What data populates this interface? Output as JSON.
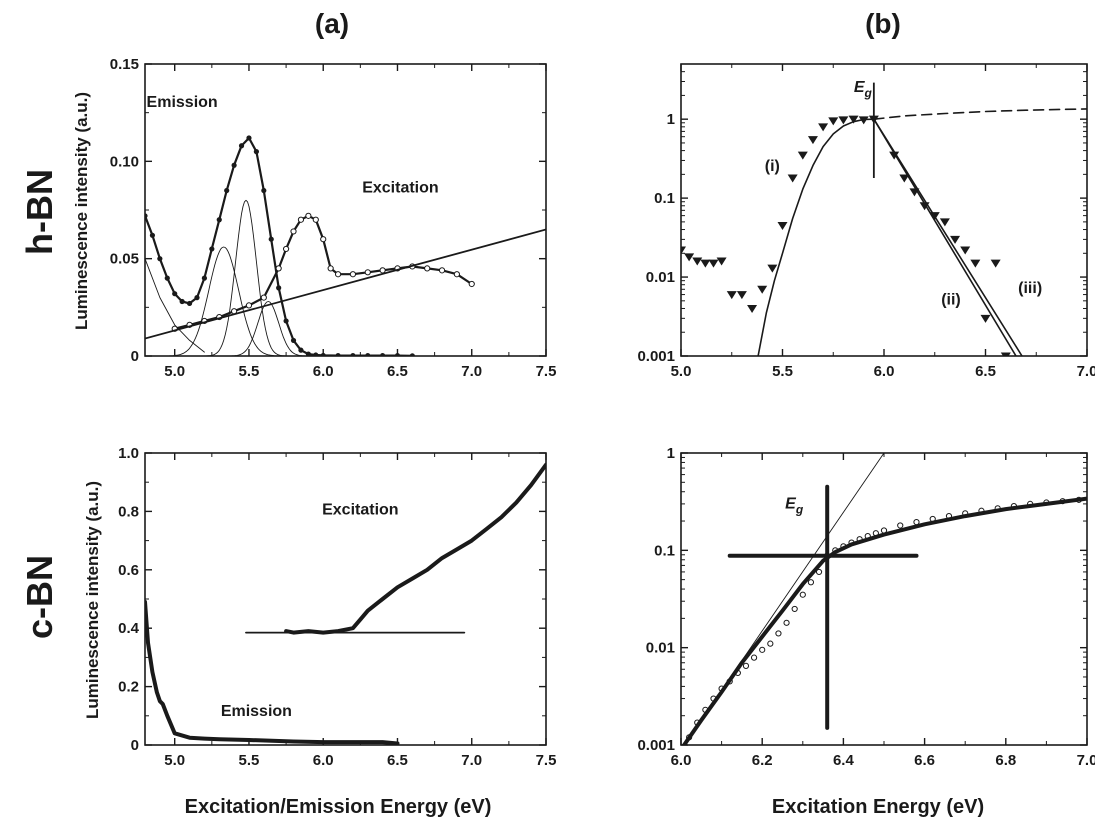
{
  "figure": {
    "column_labels": [
      "(a)",
      "(b)"
    ],
    "row_labels": [
      "h-BN",
      "c-BN"
    ],
    "x_label_left": "Excitation/Emission Energy (eV)",
    "x_label_right": "Excitation Energy (eV)",
    "y_label_left": "Luminescence intensity (a.u.)"
  },
  "chart_data": [
    {
      "id": "hbn_a",
      "type": "line",
      "row": "h-BN",
      "column": "(a)",
      "xlim": [
        4.8,
        7.5
      ],
      "ylim": [
        0,
        0.15
      ],
      "xticks": [
        5.0,
        5.5,
        6.0,
        6.5,
        7.0,
        7.5
      ],
      "yticks": [
        0,
        0.05,
        0.1,
        0.15
      ],
      "xtick_labels": [
        "5.0",
        "5.5",
        "6.0",
        "6.5",
        "7.0",
        "7.5"
      ],
      "ytick_labels": [
        "0",
        "0.05",
        "0.10",
        "0.15"
      ],
      "ylabel": "Luminescence intensity (a.u.)",
      "annotations": [
        {
          "text": "Emission",
          "x": 5.05,
          "y": 0.128
        },
        {
          "text": "Excitation",
          "x": 6.52,
          "y": 0.084
        }
      ],
      "series": [
        {
          "name": "Emission",
          "style": "filled-dots+line",
          "x": [
            4.8,
            4.85,
            4.9,
            4.95,
            5.0,
            5.05,
            5.1,
            5.15,
            5.2,
            5.25,
            5.3,
            5.35,
            5.4,
            5.45,
            5.5,
            5.55,
            5.6,
            5.65,
            5.7,
            5.75,
            5.8,
            5.85,
            5.9,
            5.95,
            6.0,
            6.1,
            6.2,
            6.3,
            6.4,
            6.5,
            6.6
          ],
          "y": [
            0.072,
            0.062,
            0.05,
            0.04,
            0.032,
            0.028,
            0.027,
            0.03,
            0.04,
            0.055,
            0.07,
            0.085,
            0.098,
            0.108,
            0.112,
            0.105,
            0.085,
            0.06,
            0.035,
            0.018,
            0.008,
            0.003,
            0.001,
            0.0005,
            0.0003,
            0.0002,
            0.0002,
            0.0002,
            0.0002,
            0.0002,
            0.0001
          ]
        },
        {
          "name": "Excitation",
          "style": "open-circles+line",
          "x": [
            5.0,
            5.1,
            5.2,
            5.3,
            5.4,
            5.5,
            5.6,
            5.7,
            5.75,
            5.8,
            5.85,
            5.9,
            5.95,
            6.0,
            6.05,
            6.1,
            6.2,
            6.3,
            6.4,
            6.5,
            6.6,
            6.7,
            6.8,
            6.9,
            7.0
          ],
          "y": [
            0.014,
            0.016,
            0.018,
            0.02,
            0.023,
            0.026,
            0.03,
            0.045,
            0.055,
            0.064,
            0.07,
            0.072,
            0.07,
            0.06,
            0.045,
            0.042,
            0.042,
            0.043,
            0.044,
            0.045,
            0.046,
            0.045,
            0.044,
            0.042,
            0.037
          ]
        },
        {
          "name": "Gaussian 1",
          "style": "thin-line",
          "center": 5.33,
          "amplitude": 0.056,
          "sigma": 0.1
        },
        {
          "name": "Gaussian 2",
          "style": "thin-line",
          "center": 5.48,
          "amplitude": 0.08,
          "sigma": 0.07
        },
        {
          "name": "Gaussian 3",
          "style": "thin-line",
          "center": 5.63,
          "amplitude": 0.028,
          "sigma": 0.07
        },
        {
          "name": "Emission tail",
          "style": "thin-line",
          "x": [
            4.8,
            4.9,
            5.0,
            5.1,
            5.2
          ],
          "y": [
            0.05,
            0.03,
            0.016,
            0.008,
            0.002
          ]
        },
        {
          "name": "Baseline",
          "style": "straight-line",
          "x": [
            4.8,
            7.5
          ],
          "y": [
            0.009,
            0.065
          ]
        }
      ]
    },
    {
      "id": "hbn_b",
      "type": "scatter",
      "row": "h-BN",
      "column": "(b)",
      "yscale": "log",
      "xlim": [
        5.0,
        7.0
      ],
      "ylim": [
        0.001,
        5
      ],
      "xticks": [
        5.0,
        5.5,
        6.0,
        6.5,
        7.0
      ],
      "yticks": [
        0.001,
        0.01,
        0.1,
        1
      ],
      "xtick_labels": [
        "5.0",
        "5.5",
        "6.0",
        "6.5",
        "7.0"
      ],
      "ytick_labels": [
        "0.001",
        "0.01",
        "0.1",
        "1"
      ],
      "annotations": [
        {
          "text": "(i)",
          "x": 5.45,
          "y": 0.22
        },
        {
          "text": "(ii)",
          "x": 6.33,
          "y": 0.0045
        },
        {
          "text": "(iii)",
          "x": 6.72,
          "y": 0.0063
        }
      ],
      "eg_label": "E",
      "eg_sub": "g",
      "eg_energy": 5.95,
      "series": [
        {
          "name": "Data",
          "style": "filled-down-triangles",
          "x": [
            5.0,
            5.04,
            5.08,
            5.12,
            5.16,
            5.2,
            5.25,
            5.3,
            5.35,
            5.4,
            5.45,
            5.5,
            5.55,
            5.6,
            5.65,
            5.7,
            5.75,
            5.8,
            5.85,
            5.9,
            5.95,
            6.05,
            6.1,
            6.15,
            6.2,
            6.25,
            6.3,
            6.35,
            6.4,
            6.45,
            6.5,
            6.55,
            6.6
          ],
          "y": [
            0.022,
            0.018,
            0.016,
            0.015,
            0.015,
            0.016,
            0.006,
            0.006,
            0.004,
            0.007,
            0.013,
            0.045,
            0.18,
            0.35,
            0.55,
            0.8,
            0.95,
            0.98,
            1.0,
            0.98,
            1.0,
            0.35,
            0.18,
            0.12,
            0.08,
            0.06,
            0.05,
            0.03,
            0.022,
            0.015,
            0.003,
            0.015,
            0.001
          ]
        },
        {
          "name": "Fit rising",
          "style": "line",
          "x": [
            5.38,
            5.42,
            5.46,
            5.5,
            5.55,
            5.6,
            5.65,
            5.7,
            5.75,
            5.8,
            5.85,
            5.9,
            5.95
          ],
          "y": [
            0.001,
            0.0035,
            0.009,
            0.02,
            0.055,
            0.13,
            0.26,
            0.45,
            0.65,
            0.82,
            0.93,
            0.99,
            1.0
          ]
        },
        {
          "name": "(ii)",
          "style": "line",
          "x": [
            5.95,
            6.65
          ],
          "y": [
            1.0,
            0.001
          ]
        },
        {
          "name": "(iii)",
          "style": "line",
          "x": [
            5.95,
            6.68
          ],
          "y": [
            1.0,
            0.001
          ]
        },
        {
          "name": "Extension",
          "style": "dashed",
          "x": [
            5.95,
            6.1,
            6.3,
            6.5,
            6.7,
            7.0
          ],
          "y": [
            1.0,
            1.1,
            1.18,
            1.25,
            1.3,
            1.35
          ]
        }
      ]
    },
    {
      "id": "cbn_a",
      "type": "line",
      "row": "c-BN",
      "column": "(a)",
      "xlim": [
        4.8,
        7.5
      ],
      "ylim": [
        0,
        1.0
      ],
      "xticks": [
        5.0,
        5.5,
        6.0,
        6.5,
        7.0,
        7.5
      ],
      "yticks": [
        0,
        0.2,
        0.4,
        0.6,
        0.8,
        1.0
      ],
      "xtick_labels": [
        "5.0",
        "5.5",
        "6.0",
        "6.5",
        "7.0",
        "7.5"
      ],
      "ytick_labels": [
        "0",
        "0.2",
        "0.4",
        "0.6",
        "0.8",
        "1.0"
      ],
      "ylabel": "Luminescence intensity (a.u.)",
      "xlabel": "Excitation/Emission Energy (eV)",
      "annotations": [
        {
          "text": "Excitation",
          "x": 6.25,
          "y": 0.79
        },
        {
          "text": "Emission",
          "x": 5.55,
          "y": 0.1
        }
      ],
      "series": [
        {
          "name": "Emission",
          "style": "thick-line",
          "x": [
            4.8,
            4.82,
            4.85,
            4.88,
            4.9,
            4.92,
            4.95,
            5.0,
            5.1,
            5.2,
            5.3,
            5.5,
            5.8,
            6.0,
            6.2,
            6.4,
            6.5
          ],
          "y": [
            0.49,
            0.35,
            0.25,
            0.18,
            0.15,
            0.14,
            0.1,
            0.04,
            0.025,
            0.022,
            0.02,
            0.017,
            0.012,
            0.01,
            0.01,
            0.01,
            0.005
          ]
        },
        {
          "name": "Excitation",
          "style": "thick-line",
          "x": [
            5.75,
            5.8,
            5.9,
            6.0,
            6.1,
            6.2,
            6.25,
            6.3,
            6.4,
            6.5,
            6.6,
            6.7,
            6.8,
            6.9,
            7.0,
            7.1,
            7.2,
            7.3,
            7.4,
            7.5
          ],
          "y": [
            0.39,
            0.385,
            0.39,
            0.385,
            0.39,
            0.4,
            0.43,
            0.46,
            0.5,
            0.54,
            0.57,
            0.6,
            0.64,
            0.67,
            0.7,
            0.74,
            0.78,
            0.83,
            0.89,
            0.96
          ]
        },
        {
          "name": "Baseline",
          "style": "straight-line",
          "x": [
            5.48,
            6.95
          ],
          "y": [
            0.385,
            0.385
          ]
        }
      ]
    },
    {
      "id": "cbn_b",
      "type": "scatter",
      "row": "c-BN",
      "column": "(b)",
      "yscale": "log",
      "xlim": [
        6.0,
        7.0
      ],
      "ylim": [
        0.001,
        1
      ],
      "xticks": [
        6.0,
        6.2,
        6.4,
        6.6,
        6.8,
        7.0
      ],
      "yticks": [
        0.001,
        0.01,
        0.1,
        1
      ],
      "xtick_labels": [
        "6.0",
        "6.2",
        "6.4",
        "6.6",
        "6.8",
        "7.0"
      ],
      "ytick_labels": [
        "0.001",
        "0.01",
        "0.1",
        "1"
      ],
      "xlabel": "Excitation Energy (eV)",
      "eg_label": "E",
      "eg_sub": "g",
      "eg_energy": 6.36,
      "eg_value": 0.088,
      "series": [
        {
          "name": "Data",
          "style": "open-circles",
          "x": [
            6.02,
            6.04,
            6.06,
            6.08,
            6.1,
            6.12,
            6.14,
            6.16,
            6.18,
            6.2,
            6.22,
            6.24,
            6.26,
            6.28,
            6.3,
            6.32,
            6.34,
            6.36,
            6.38,
            6.4,
            6.42,
            6.44,
            6.46,
            6.48,
            6.5,
            6.54,
            6.58,
            6.62,
            6.66,
            6.7,
            6.74,
            6.78,
            6.82,
            6.86,
            6.9,
            6.94,
            6.98
          ],
          "y": [
            0.0012,
            0.0017,
            0.0023,
            0.003,
            0.0038,
            0.0045,
            0.0055,
            0.0065,
            0.0079,
            0.0095,
            0.011,
            0.014,
            0.018,
            0.025,
            0.035,
            0.047,
            0.06,
            0.088,
            0.1,
            0.11,
            0.12,
            0.13,
            0.14,
            0.15,
            0.16,
            0.18,
            0.195,
            0.21,
            0.225,
            0.24,
            0.255,
            0.27,
            0.285,
            0.3,
            0.31,
            0.32,
            0.33
          ]
        },
        {
          "name": "Fit",
          "style": "thick-line",
          "x": [
            6.0,
            6.05,
            6.1,
            6.15,
            6.2,
            6.25,
            6.3,
            6.35,
            6.38,
            6.42,
            6.5,
            6.6,
            6.7,
            6.8,
            6.9,
            7.0
          ],
          "y": [
            0.0009,
            0.0018,
            0.0035,
            0.007,
            0.013,
            0.024,
            0.045,
            0.078,
            0.096,
            0.115,
            0.145,
            0.185,
            0.225,
            0.265,
            0.3,
            0.34
          ]
        },
        {
          "name": "Tangent",
          "style": "thin-line",
          "x": [
            6.0,
            6.5
          ],
          "y": [
            0.0009,
            1.0
          ]
        },
        {
          "name": "Eg horizontal",
          "style": "thick-line",
          "x": [
            6.12,
            6.58
          ],
          "y": [
            0.088,
            0.088
          ]
        },
        {
          "name": "Eg vertical",
          "style": "thick-line",
          "x": [
            6.36,
            6.36
          ],
          "y": [
            0.0015,
            0.45
          ]
        }
      ]
    }
  ]
}
